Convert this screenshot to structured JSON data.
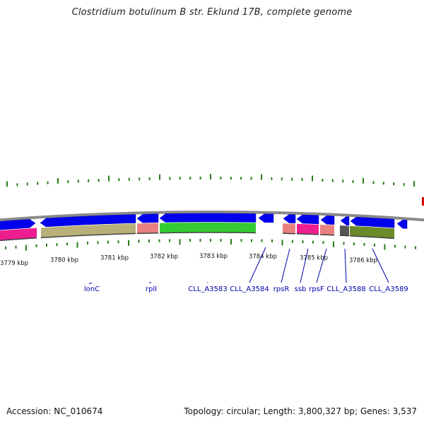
{
  "title": "Clostridium botulinum B str. Eklund 17B, complete genome",
  "accession": "Accession: NC_010674",
  "summary": "Topology: circular; Length: 3,800,327 bp; Genes: 3,537",
  "kbp_labels": [
    "3779 kbp",
    "3780 kbp",
    "3781 kbp",
    "3782 kbp",
    "3783 kbp",
    "3784 kbp",
    "3785 kbp",
    "3786 kbp"
  ],
  "gene_labels": [
    "lonC",
    "rplI",
    "CLL_A3583",
    "CLL_A3584",
    "rpsR",
    "ssb",
    "rpsF",
    "CLL_A3588",
    "CLL_A3589"
  ],
  "colors": {
    "backbone": "#8a8a8a",
    "cds": "#0000ee",
    "tick": "#2a7a1a",
    "label": "#0000aa",
    "feature_khaki": "#b8b078",
    "feature_salmon": "#e88080",
    "feature_pink": "#ee1e90",
    "feature_green": "#33cc33",
    "feature_grey": "#555555",
    "feature_olive": "#6b8a2a",
    "feature_red": "#dd0000"
  }
}
